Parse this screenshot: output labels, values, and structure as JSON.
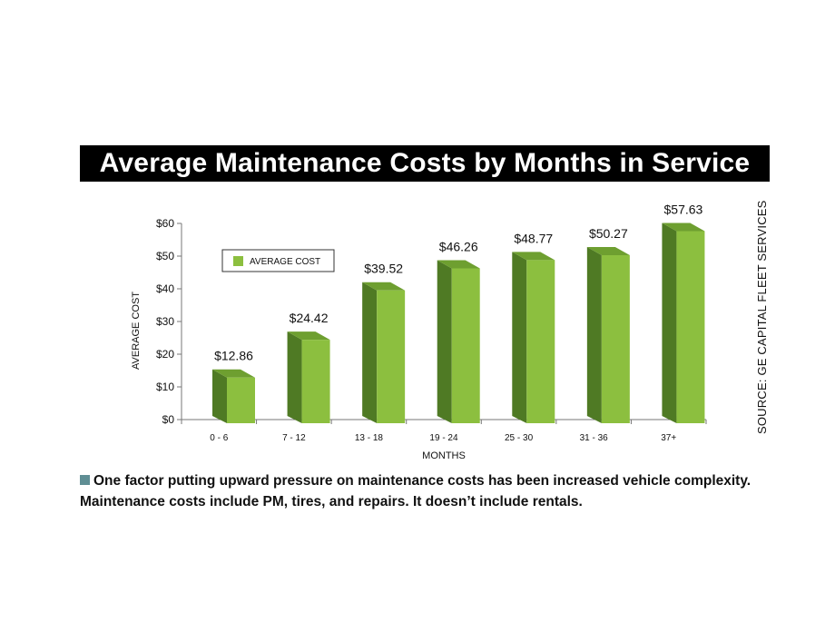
{
  "colors": {
    "bar_front": "#8cbf3f",
    "bar_side": "#4f7a24",
    "bar_top": "#6e9f30",
    "caption_square": "#5f8e94"
  },
  "chart_data": {
    "type": "bar",
    "title": "Average Maintenance Costs by Months in Service",
    "categories": [
      "0 - 6",
      "7 - 12",
      "13 - 18",
      "19 - 24",
      "25 - 30",
      "31 - 36",
      "37+"
    ],
    "series": [
      {
        "name": "AVERAGE COST",
        "values": [
          12.86,
          24.42,
          39.52,
          46.26,
          48.77,
          50.27,
          57.63
        ]
      }
    ],
    "data_labels": [
      "$12.86",
      "$24.42",
      "$39.52",
      "$46.26",
      "$48.77",
      "$50.27",
      "$57.63"
    ],
    "y_ticks": [
      "$0",
      "$10",
      "$20",
      "$30",
      "$40",
      "$50",
      "$60"
    ],
    "xlabel": "MONTHS",
    "ylabel": "AVERAGE COST",
    "ylim": [
      0,
      60
    ],
    "grid": false,
    "legend_position": "top-left",
    "bar_style": "3d"
  },
  "source": "SOURCE: GE CAPITAL FLEET SERVICES",
  "caption": "One factor putting upward pressure on maintenance costs has been increased vehicle complexity. Maintenance costs include PM, tires, and repairs. It doesn’t include rentals."
}
